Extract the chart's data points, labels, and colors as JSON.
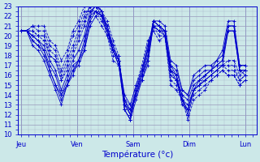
{
  "xlabel": "Température (°c)",
  "ylim": [
    10,
    23
  ],
  "yticks": [
    10,
    11,
    12,
    13,
    14,
    15,
    16,
    17,
    18,
    19,
    20,
    21,
    22,
    23
  ],
  "day_labels": [
    "Jeu",
    "Ven",
    "Sam",
    "Dim",
    "Lun"
  ],
  "day_positions": [
    0,
    1,
    2,
    3,
    4
  ],
  "bg_color": "#cce8e8",
  "grid_color": "#9999bb",
  "line_color": "#0000cc",
  "total_ticks": 40,
  "series": [
    {
      "style": "solid",
      "values": [
        20.5,
        20.5,
        20.0,
        19.5,
        18.5,
        16.5,
        15.0,
        14.0,
        15.0,
        16.5,
        17.5,
        19.0,
        22.0,
        23.2,
        22.5,
        20.5,
        19.0,
        17.5,
        13.5,
        12.5,
        14.0,
        16.0,
        17.5,
        21.5,
        21.0,
        20.5,
        17.0,
        16.0,
        13.0,
        12.5,
        14.5,
        15.5,
        16.0,
        16.5,
        17.0,
        17.5,
        21.0,
        21.0,
        16.5,
        16.5
      ]
    },
    {
      "style": "solid",
      "values": [
        20.5,
        20.5,
        19.5,
        19.0,
        18.0,
        16.5,
        15.0,
        13.5,
        15.0,
        16.0,
        17.5,
        18.5,
        21.5,
        22.5,
        22.0,
        20.0,
        18.5,
        17.0,
        12.5,
        11.5,
        13.5,
        15.5,
        17.0,
        21.0,
        20.5,
        20.0,
        16.5,
        15.5,
        13.5,
        13.0,
        14.5,
        15.0,
        15.5,
        16.0,
        16.5,
        17.0,
        20.5,
        20.5,
        16.5,
        16.0
      ]
    },
    {
      "style": "solid",
      "values": [
        20.5,
        20.5,
        19.0,
        18.5,
        17.5,
        16.0,
        14.5,
        13.0,
        15.0,
        16.5,
        17.0,
        18.5,
        21.0,
        22.0,
        22.5,
        20.5,
        18.5,
        17.5,
        13.5,
        12.0,
        14.0,
        15.5,
        17.5,
        21.0,
        21.0,
        20.0,
        16.5,
        16.0,
        14.0,
        13.5,
        15.0,
        15.5,
        16.0,
        16.5,
        17.0,
        17.5,
        20.5,
        20.5,
        16.5,
        16.5
      ]
    },
    {
      "style": "solid",
      "values": [
        20.5,
        20.5,
        19.5,
        19.0,
        18.5,
        17.0,
        16.0,
        14.0,
        15.5,
        17.0,
        17.5,
        19.5,
        22.0,
        22.5,
        22.0,
        20.5,
        18.5,
        17.0,
        13.0,
        12.5,
        14.5,
        16.0,
        18.0,
        21.5,
        21.0,
        20.5,
        17.0,
        16.5,
        14.5,
        14.0,
        15.5,
        16.0,
        16.5,
        16.5,
        17.5,
        18.0,
        21.0,
        21.0,
        17.0,
        17.0
      ]
    },
    {
      "style": "solid",
      "values": [
        20.5,
        20.5,
        20.0,
        19.5,
        19.0,
        17.5,
        16.5,
        14.5,
        16.0,
        17.5,
        18.5,
        20.0,
        22.5,
        23.0,
        22.5,
        21.0,
        19.0,
        17.5,
        14.0,
        13.0,
        15.0,
        16.5,
        18.5,
        21.5,
        21.5,
        21.0,
        17.5,
        17.0,
        14.5,
        14.0,
        16.0,
        16.5,
        17.0,
        17.0,
        17.5,
        18.5,
        21.5,
        21.5,
        17.0,
        17.0
      ]
    },
    {
      "style": "dashed",
      "values": [
        20.5,
        20.5,
        20.5,
        20.0,
        20.0,
        18.0,
        17.5,
        15.5,
        16.5,
        18.0,
        19.5,
        21.0,
        23.0,
        23.5,
        22.5,
        21.5,
        19.5,
        18.0,
        12.5,
        11.5,
        14.5,
        16.0,
        18.5,
        21.5,
        21.0,
        20.5,
        16.5,
        16.0,
        13.5,
        12.5,
        14.5,
        15.0,
        16.0,
        16.5,
        17.0,
        17.0,
        17.5,
        17.5,
        16.0,
        16.5
      ]
    },
    {
      "style": "dashed",
      "values": [
        20.5,
        20.5,
        20.0,
        20.0,
        19.5,
        18.0,
        17.5,
        15.5,
        17.0,
        18.5,
        20.0,
        21.5,
        23.0,
        23.0,
        22.0,
        21.0,
        18.5,
        17.5,
        12.5,
        11.5,
        14.0,
        16.0,
        18.5,
        21.0,
        20.5,
        20.5,
        16.0,
        15.5,
        13.5,
        12.5,
        14.5,
        15.0,
        15.5,
        16.0,
        16.5,
        17.0,
        17.0,
        17.0,
        15.5,
        16.0
      ]
    },
    {
      "style": "dashed",
      "values": [
        20.5,
        20.5,
        20.5,
        20.0,
        20.0,
        18.5,
        18.0,
        16.0,
        17.5,
        19.0,
        20.5,
        22.0,
        23.0,
        23.0,
        22.0,
        21.0,
        18.5,
        18.0,
        13.0,
        12.0,
        14.5,
        16.5,
        19.0,
        21.0,
        20.5,
        20.5,
        16.0,
        15.5,
        14.0,
        12.0,
        14.5,
        15.0,
        15.5,
        16.0,
        16.5,
        17.0,
        16.5,
        16.5,
        15.5,
        16.0
      ]
    },
    {
      "style": "dashed",
      "values": [
        20.5,
        20.5,
        21.0,
        20.5,
        20.5,
        19.0,
        18.5,
        16.5,
        18.0,
        20.0,
        21.0,
        22.5,
        22.5,
        22.5,
        21.5,
        20.5,
        18.0,
        17.5,
        13.0,
        12.0,
        14.5,
        16.5,
        19.0,
        21.0,
        20.0,
        20.0,
        15.5,
        15.0,
        13.5,
        12.0,
        14.0,
        14.5,
        15.0,
        15.5,
        16.0,
        16.5,
        16.0,
        16.0,
        15.0,
        15.5
      ]
    },
    {
      "style": "dashed",
      "values": [
        20.5,
        20.5,
        21.0,
        21.0,
        21.0,
        19.5,
        19.0,
        17.5,
        18.5,
        20.5,
        21.5,
        23.0,
        23.0,
        22.0,
        21.0,
        20.0,
        17.5,
        17.0,
        13.5,
        13.0,
        15.0,
        17.0,
        19.5,
        20.5,
        19.5,
        20.0,
        15.0,
        14.5,
        13.5,
        11.5,
        13.5,
        14.0,
        14.5,
        15.5,
        16.0,
        16.5,
        16.0,
        16.0,
        15.0,
        15.5
      ]
    }
  ]
}
